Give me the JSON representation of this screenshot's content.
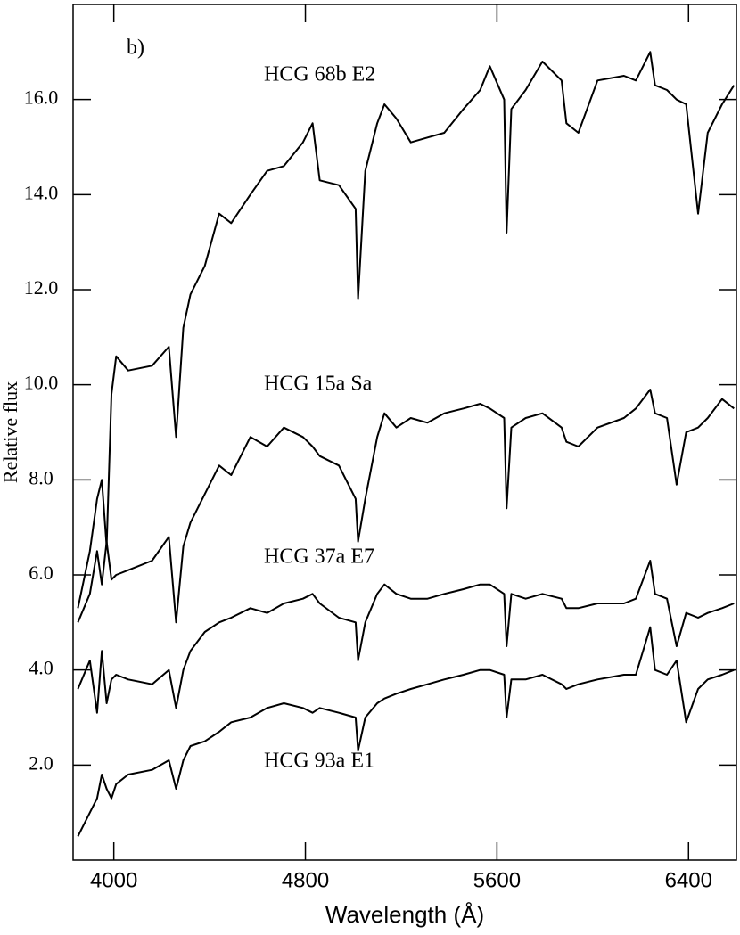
{
  "chart_data": {
    "type": "line",
    "annotation": "b)",
    "xlabel": "Wavelength (Å)",
    "ylabel": "Relative flux",
    "xlim": [
      3830,
      6600
    ],
    "ylim": [
      0,
      18
    ],
    "xticks": [
      4000,
      4800,
      5600,
      6400
    ],
    "yticks": [
      {
        "value": 2,
        "label": "2.0"
      },
      {
        "value": 4,
        "label": "4.0"
      },
      {
        "value": 6,
        "label": "6.0"
      },
      {
        "value": 8,
        "label": "8.0"
      },
      {
        "value": 10,
        "label": "10.0"
      },
      {
        "value": 12,
        "label": "12.0"
      },
      {
        "value": 14,
        "label": "14.0"
      },
      {
        "value": 16,
        "label": "16.0"
      }
    ],
    "x": [
      3850,
      3900,
      3930,
      3950,
      3970,
      3990,
      4010,
      4060,
      4160,
      4230,
      4260,
      4290,
      4320,
      4380,
      4440,
      4490,
      4570,
      4640,
      4710,
      4790,
      4830,
      4860,
      4940,
      5010,
      5020,
      5050,
      5100,
      5130,
      5180,
      5240,
      5310,
      5380,
      5460,
      5530,
      5570,
      5630,
      5640,
      5660,
      5720,
      5790,
      5870,
      5890,
      5940,
      6020,
      6130,
      6180,
      6240,
      6260,
      6310,
      6350,
      6390,
      6440,
      6480,
      6540,
      6590
    ],
    "series": [
      {
        "name": "HCG 68b E2",
        "color": "#000000",
        "values": [
          5.3,
          6.5,
          7.6,
          8.0,
          6.6,
          9.8,
          10.6,
          10.3,
          10.4,
          10.8,
          8.9,
          11.2,
          11.9,
          12.5,
          13.6,
          13.4,
          14.0,
          14.5,
          14.6,
          15.1,
          15.5,
          14.3,
          14.2,
          13.7,
          11.8,
          14.5,
          15.5,
          15.9,
          15.6,
          15.1,
          15.2,
          15.3,
          15.8,
          16.2,
          16.7,
          16.0,
          13.2,
          15.8,
          16.2,
          16.8,
          16.4,
          15.5,
          15.3,
          16.4,
          16.5,
          16.4,
          17.0,
          16.3,
          16.2,
          16.0,
          15.9,
          13.6,
          15.3,
          15.9,
          16.3
        ]
      },
      {
        "name": "HCG 15a Sa",
        "color": "#000000",
        "values": [
          5.0,
          5.6,
          6.5,
          5.8,
          6.7,
          5.9,
          6.0,
          6.1,
          6.3,
          6.8,
          5.0,
          6.6,
          7.1,
          7.7,
          8.3,
          8.1,
          8.9,
          8.7,
          9.1,
          8.9,
          8.7,
          8.5,
          8.3,
          7.6,
          6.7,
          7.6,
          8.9,
          9.4,
          9.1,
          9.3,
          9.2,
          9.4,
          9.5,
          9.6,
          9.5,
          9.3,
          7.4,
          9.1,
          9.3,
          9.4,
          9.1,
          8.8,
          8.7,
          9.1,
          9.3,
          9.5,
          9.9,
          9.4,
          9.3,
          7.9,
          9.0,
          9.1,
          9.3,
          9.7,
          9.5
        ]
      },
      {
        "name": "HCG 37a E7",
        "color": "#000000",
        "values": [
          3.6,
          4.2,
          3.1,
          4.4,
          3.3,
          3.8,
          3.9,
          3.8,
          3.7,
          4.0,
          3.2,
          4.0,
          4.4,
          4.8,
          5.0,
          5.1,
          5.3,
          5.2,
          5.4,
          5.5,
          5.6,
          5.4,
          5.1,
          5.0,
          4.2,
          5.0,
          5.6,
          5.8,
          5.6,
          5.5,
          5.5,
          5.6,
          5.7,
          5.8,
          5.8,
          5.6,
          4.5,
          5.6,
          5.5,
          5.6,
          5.5,
          5.3,
          5.3,
          5.4,
          5.4,
          5.5,
          6.3,
          5.6,
          5.5,
          4.5,
          5.2,
          5.1,
          5.2,
          5.3,
          5.4
        ]
      },
      {
        "name": "HCG 93a E1",
        "color": "#000000",
        "values": [
          0.5,
          1.0,
          1.3,
          1.8,
          1.5,
          1.3,
          1.6,
          1.8,
          1.9,
          2.1,
          1.5,
          2.1,
          2.4,
          2.5,
          2.7,
          2.9,
          3.0,
          3.2,
          3.3,
          3.2,
          3.1,
          3.2,
          3.1,
          3.0,
          2.3,
          3.0,
          3.3,
          3.4,
          3.5,
          3.6,
          3.7,
          3.8,
          3.9,
          4.0,
          4.0,
          3.9,
          3.0,
          3.8,
          3.8,
          3.9,
          3.7,
          3.6,
          3.7,
          3.8,
          3.9,
          3.9,
          4.9,
          4.0,
          3.9,
          4.2,
          2.9,
          3.6,
          3.8,
          3.9,
          4.0
        ]
      }
    ]
  }
}
